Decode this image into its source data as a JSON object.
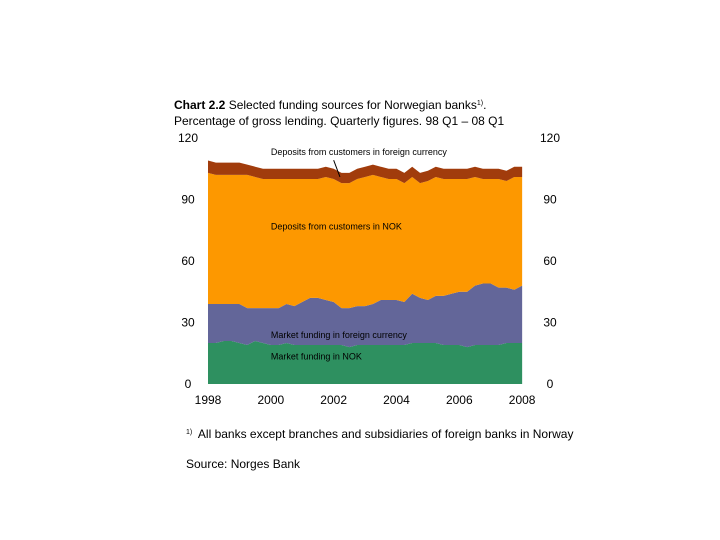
{
  "header": {
    "chart_number": "Chart 2.2",
    "title_text": "Selected funding sources for Norwegian banks",
    "title_note_marker": "1)",
    "title_suffix": ".",
    "subtitle": "Percentage of gross lending. Quarterly figures. 98 Q1 – 08 Q1"
  },
  "footnote": {
    "marker": "1)",
    "text": "All banks except branches and subsidiaries of foreign banks in Norway"
  },
  "source": "Source: Norges Bank",
  "chart_data": {
    "type": "area",
    "stacked": true,
    "x_start": 1998.0,
    "x_step": 0.25,
    "xlim": [
      1998,
      2008.25
    ],
    "ylim": [
      0,
      120
    ],
    "x_ticks": [
      {
        "value": 1998,
        "label": "1998"
      },
      {
        "value": 2000,
        "label": "2000"
      },
      {
        "value": 2002,
        "label": "2002"
      },
      {
        "value": 2004,
        "label": "2004"
      },
      {
        "value": 2006,
        "label": "2006"
      },
      {
        "value": 2008,
        "label": "2008"
      }
    ],
    "y_ticks_left": [
      "0",
      "30",
      "60",
      "90",
      "120"
    ],
    "y_ticks_right": [
      "0",
      "30",
      "60",
      "90",
      "120"
    ],
    "series": [
      {
        "name": "Market funding in NOK",
        "color": "#2e9060",
        "values": [
          20,
          20,
          21,
          21,
          20,
          19,
          21,
          20,
          19,
          19,
          20,
          19,
          19,
          19,
          19,
          19,
          19,
          19,
          18,
          19,
          19,
          19,
          19,
          19,
          19,
          19,
          20,
          20,
          20,
          20,
          19,
          19,
          19,
          18,
          19,
          19,
          19,
          19,
          20,
          20,
          20
        ]
      },
      {
        "name": "Market funding in foreign currency",
        "color": "#636699",
        "values": [
          19,
          19,
          18,
          18,
          19,
          18,
          16,
          17,
          18,
          18,
          19,
          19,
          21,
          23,
          23,
          22,
          21,
          18,
          19,
          19,
          19,
          20,
          22,
          22,
          22,
          21,
          24,
          22,
          21,
          23,
          24,
          25,
          26,
          27,
          29,
          30,
          30,
          28,
          27,
          26,
          28
        ]
      },
      {
        "name": "Deposits from customers in NOK",
        "color": "#fd9800",
        "values": [
          64,
          63,
          63,
          63,
          63,
          65,
          64,
          63,
          63,
          63,
          61,
          62,
          60,
          58,
          58,
          60,
          60,
          61,
          61,
          62,
          63,
          63,
          60,
          59,
          59,
          58,
          57,
          56,
          58,
          58,
          57,
          56,
          55,
          55,
          53,
          51,
          51,
          53,
          52,
          55,
          53
        ]
      },
      {
        "name": "Deposits from customers in foreign currency",
        "color": "#a13c0c",
        "values": [
          6,
          6,
          6,
          6,
          6,
          5,
          5,
          5,
          5,
          5,
          5,
          5,
          5,
          5,
          5,
          5,
          5,
          5,
          5,
          5,
          5,
          5,
          5,
          5,
          5,
          5,
          5,
          5,
          5,
          5,
          5,
          5,
          5,
          5,
          5,
          5,
          5,
          5,
          5,
          5,
          5
        ]
      }
    ],
    "annotations": [
      {
        "text": "Deposits from customers in foreign currency",
        "series": 3,
        "arrow_to": {
          "x": 2002.2,
          "y": 101
        }
      },
      {
        "text": "Deposits from customers in NOK",
        "series": 2
      },
      {
        "text": "Market funding in foreign currency",
        "series": 1
      },
      {
        "text": "Market funding in NOK",
        "series": 0
      }
    ]
  }
}
